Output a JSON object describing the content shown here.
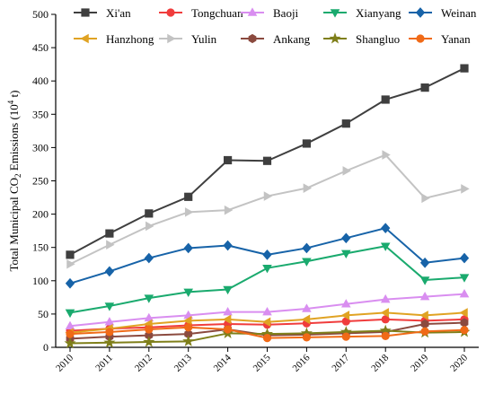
{
  "chart_data": {
    "type": "line",
    "ylabel_main": "Total Municipal CO",
    "ylabel_sub": "2",
    "ylabel_mid": " Emissions  (10",
    "ylabel_sup": "4",
    "ylabel_end": " t)",
    "ylim": [
      0,
      500
    ],
    "yticks": [
      "0",
      "50",
      "100",
      "150",
      "200",
      "250",
      "300",
      "350",
      "400",
      "450",
      "500"
    ],
    "x": [
      "2010",
      "2011",
      "2012",
      "2013",
      "2014",
      "2015",
      "2016",
      "2017",
      "2018",
      "2019",
      "2020"
    ],
    "grid": false,
    "legend_position": "top",
    "series": [
      {
        "name": "Xi'an",
        "color": "#3f3f3f",
        "marker": "square",
        "values": [
          139,
          171,
          201,
          226,
          281,
          280,
          306,
          336,
          372,
          390,
          419
        ]
      },
      {
        "name": "Tongchuan",
        "color": "#f03c3c",
        "marker": "circle",
        "values": [
          25,
          28,
          30,
          33,
          35,
          34,
          36,
          39,
          42,
          40,
          42
        ]
      },
      {
        "name": "Baoji",
        "color": "#d98ef0",
        "marker": "triangle-up",
        "values": [
          32,
          38,
          44,
          48,
          53,
          53,
          58,
          65,
          72,
          76,
          80
        ]
      },
      {
        "name": "Xianyang",
        "color": "#1aaa6e",
        "marker": "triangle-down",
        "values": [
          52,
          62,
          74,
          83,
          87,
          119,
          129,
          141,
          152,
          101,
          105
        ]
      },
      {
        "name": "Weinan",
        "color": "#1763a8",
        "marker": "diamond",
        "values": [
          96,
          114,
          134,
          149,
          153,
          139,
          149,
          164,
          179,
          127,
          134
        ]
      },
      {
        "name": "Hanzhong",
        "color": "#e0a323",
        "marker": "triangle-left",
        "values": [
          22,
          28,
          35,
          40,
          42,
          38,
          42,
          48,
          52,
          48,
          52
        ]
      },
      {
        "name": "Yulin",
        "color": "#c3c3c3",
        "marker": "triangle-right",
        "values": [
          125,
          154,
          182,
          203,
          206,
          227,
          239,
          265,
          289,
          224,
          238
        ]
      },
      {
        "name": "Ankang",
        "color": "#8b4a3f",
        "marker": "hexagon",
        "values": [
          13,
          16,
          18,
          20,
          27,
          18,
          19,
          21,
          23,
          35,
          37
        ]
      },
      {
        "name": "Shangluo",
        "color": "#7f7f1a",
        "marker": "star",
        "values": [
          6,
          7,
          8,
          9,
          21,
          20,
          21,
          23,
          25,
          22,
          23
        ]
      },
      {
        "name": "Yanan",
        "color": "#f06a17",
        "marker": "circle-fill",
        "values": [
          20,
          23,
          27,
          30,
          27,
          14,
          15,
          16,
          17,
          24,
          26
        ]
      }
    ]
  }
}
